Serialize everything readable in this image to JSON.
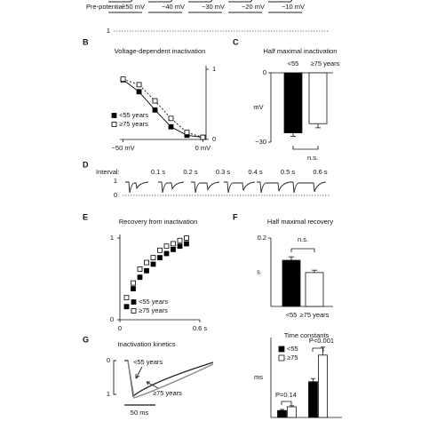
{
  "chart_data": [
    {
      "type": "traces",
      "label_prefix": "Pre-potential:",
      "labels": [
        "−50 mV",
        "−40 mV",
        "−30 mV",
        "−20 mV",
        "−10 mV"
      ],
      "scale_labels": [
        "1"
      ]
    },
    {
      "type": "line",
      "panel": "B",
      "title": "Voltage-dependent inactivation",
      "x": [
        -50,
        -40,
        -30,
        -20,
        -10,
        0
      ],
      "xlim": [
        -52,
        2
      ],
      "xticks": [
        {
          "value": -50,
          "label": "−50 mV"
        },
        {
          "value": 0,
          "label": "0 mV"
        }
      ],
      "ylim": [
        0,
        1
      ],
      "yticks": [
        0,
        1
      ],
      "y_axis_side": "right",
      "series": [
        {
          "name": "<55 years",
          "color": "#000000",
          "fill": "#000000",
          "line_style": "solid",
          "values": [
            0.85,
            0.68,
            0.42,
            0.18,
            0.06,
            0.03
          ]
        },
        {
          "name": "≥75 years",
          "color": "#000000",
          "fill": "#ffffff",
          "line_style": "dashed",
          "values": [
            0.86,
            0.78,
            0.55,
            0.3,
            0.1,
            0.03
          ]
        }
      ]
    },
    {
      "type": "bar",
      "panel": "C",
      "title": "Half maximal  inactivation",
      "categories": [
        "<55",
        "≥75 years"
      ],
      "category_label_position": "top",
      "values": [
        -26,
        -22
      ],
      "errors": [
        1.5,
        1.8
      ],
      "colors": [
        "#000000",
        "#ffffff"
      ],
      "ylim": [
        -30,
        0
      ],
      "yticks": [
        0,
        {
          "value": -30,
          "label": "−30"
        }
      ],
      "ylabel": "mV",
      "annotations": [
        "n.s."
      ]
    },
    {
      "type": "traces",
      "panel": "D",
      "label_prefix": "Interval:",
      "labels": [
        "0.1 s",
        "0.2 s",
        "0.3 s",
        "0.4 s",
        "0.5 s",
        "0.6 s"
      ],
      "scale_labels": [
        "1",
        "0"
      ]
    },
    {
      "type": "scatter",
      "panel": "E",
      "title": "Recovery from inactivation",
      "x": [
        0.05,
        0.1,
        0.15,
        0.2,
        0.25,
        0.3,
        0.35,
        0.4,
        0.45,
        0.5
      ],
      "xlim": [
        0,
        0.6
      ],
      "xticks": [
        0,
        {
          "value": 0.6,
          "label": "0.6 s"
        }
      ],
      "ylim": [
        0,
        1
      ],
      "yticks": [
        0,
        1
      ],
      "y_axis_side": "left",
      "series": [
        {
          "name": "<55 years",
          "color": "#000000",
          "fill": "#000000",
          "values": [
            0.16,
            0.38,
            0.52,
            0.6,
            0.68,
            0.76,
            0.81,
            0.86,
            0.9,
            0.93
          ]
        },
        {
          "name": "≥75 years",
          "color": "#000000",
          "fill": "#ffffff",
          "values": [
            0.27,
            0.45,
            0.62,
            0.7,
            0.76,
            0.85,
            0.9,
            0.93,
            0.97,
            1.0
          ]
        }
      ]
    },
    {
      "type": "bar",
      "panel": "F",
      "title": "Half maximal recovery",
      "categories": [
        "<55",
        "≥75 years"
      ],
      "category_label_position": "bottom",
      "values": [
        0.135,
        0.099
      ],
      "errors": [
        0.01,
        0.007
      ],
      "colors": [
        "#000000",
        "#ffffff"
      ],
      "ylim": [
        0,
        0.2
      ],
      "yticks": [
        0.2
      ],
      "ylabel": "s",
      "annotations": [
        "n.s."
      ]
    },
    {
      "type": "traces",
      "panel": "G",
      "title": "Inactivation kinetics",
      "labels": [
        "<55 years",
        "≥75 years"
      ],
      "scale_labels": [
        "0",
        "1"
      ],
      "time_scale": "50 ms"
    },
    {
      "type": "grouped-bar",
      "title": "Time constants",
      "categories": [
        null,
        null
      ],
      "series": [
        {
          "name": "<55",
          "color": "#000000",
          "values": [
            13,
            67
          ],
          "errors": [
            2,
            6
          ]
        },
        {
          "name": "≥75",
          "color": "#ffffff",
          "values": [
            20,
            117
          ],
          "errors": [
            2,
            15
          ]
        }
      ],
      "ylim": [
        0,
        150
      ],
      "ylabel": "ms",
      "annotations": [
        "P=0.14",
        "P<0.001"
      ]
    }
  ]
}
